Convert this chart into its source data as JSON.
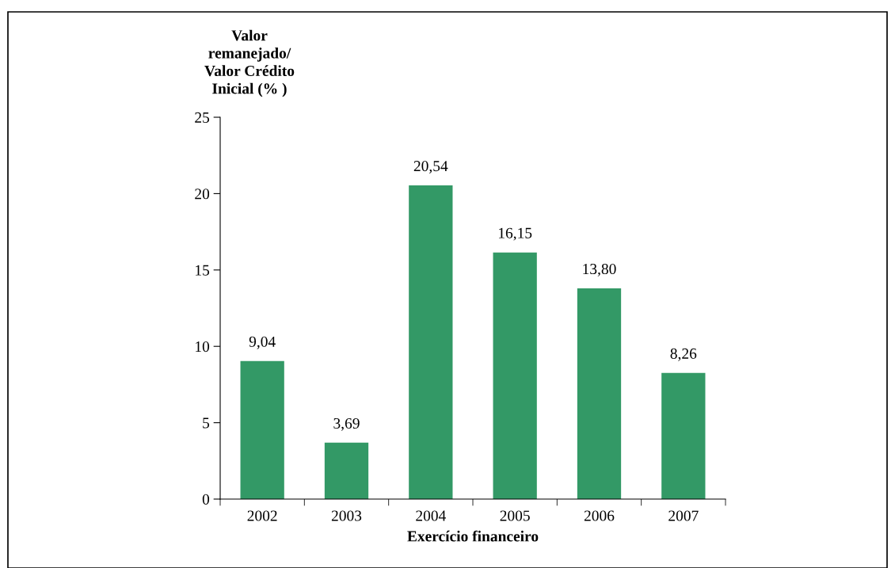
{
  "chart_data": {
    "type": "bar",
    "categories": [
      "2002",
      "2003",
      "2004",
      "2005",
      "2006",
      "2007"
    ],
    "values": [
      9.04,
      3.69,
      20.54,
      16.15,
      13.8,
      8.26
    ],
    "value_labels": [
      "9,04",
      "3,69",
      "20,54",
      "16,15",
      "13,80",
      "8,26"
    ],
    "color": "#339966",
    "ylabel": "Valor\nremanejado/\nValor Crédito\nInicial (% )",
    "xlabel": "Exercício financeiro",
    "ylim": [
      0,
      25
    ],
    "yticks": [
      0,
      5,
      10,
      15,
      20,
      25
    ],
    "grid": false,
    "legend": false
  }
}
